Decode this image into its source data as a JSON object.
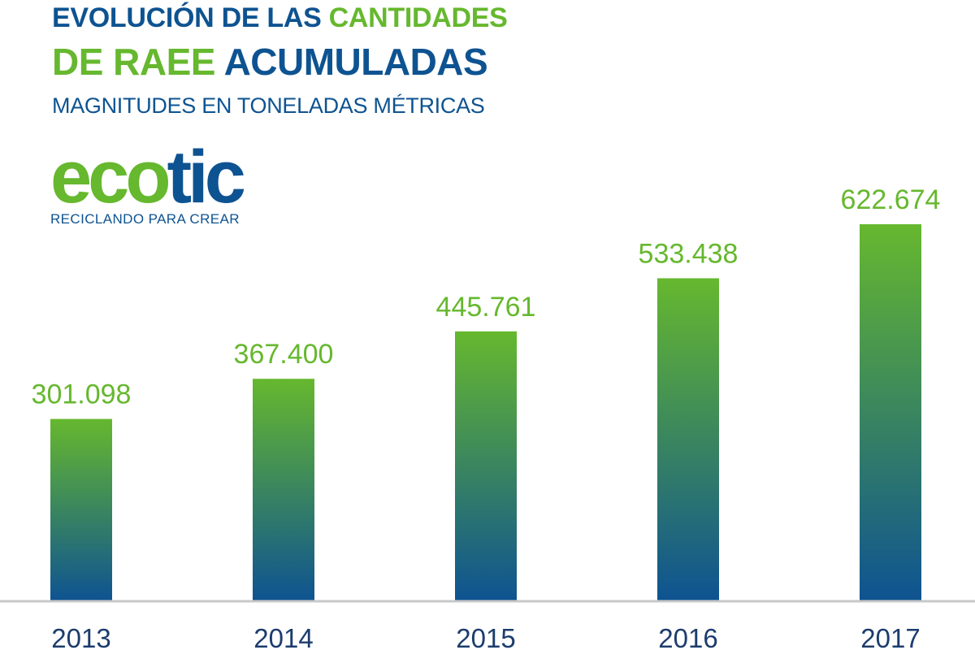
{
  "title": {
    "line1_a": "EVOLUCIÓN DE LAS",
    "line1_b": "CANTIDADES",
    "line2_a": "DE RAEE",
    "line2_b": "ACUMULADAS",
    "subtitle": "MAGNITUDES EN TONELADAS MÉTRICAS"
  },
  "logo": {
    "eco": "eco",
    "tic": "tic",
    "tagline": "RECICLANDO PARA CREAR"
  },
  "colors": {
    "blue": "#0e5391",
    "green": "#66b82e",
    "axis": "#c8c8c8",
    "label_dark": "#1c3c6e"
  },
  "chart_data": {
    "type": "bar",
    "categories": [
      "2013",
      "2014",
      "2015",
      "2016",
      "2017"
    ],
    "values": [
      301098,
      367400,
      445761,
      533438,
      622674
    ],
    "value_labels": [
      "301.098",
      "367.400",
      "445.761",
      "533.438",
      "622.674"
    ],
    "title": "EVOLUCIÓN DE LAS CANTIDADES DE RAEE ACUMULADAS",
    "subtitle": "MAGNITUDES EN TONELADAS MÉTRICAS",
    "xlabel": "",
    "ylabel": "",
    "ylim": [
      0,
      622674
    ],
    "grid": false,
    "legend": "none",
    "bar_gradient": [
      "#66b82e",
      "#0e5391"
    ]
  }
}
